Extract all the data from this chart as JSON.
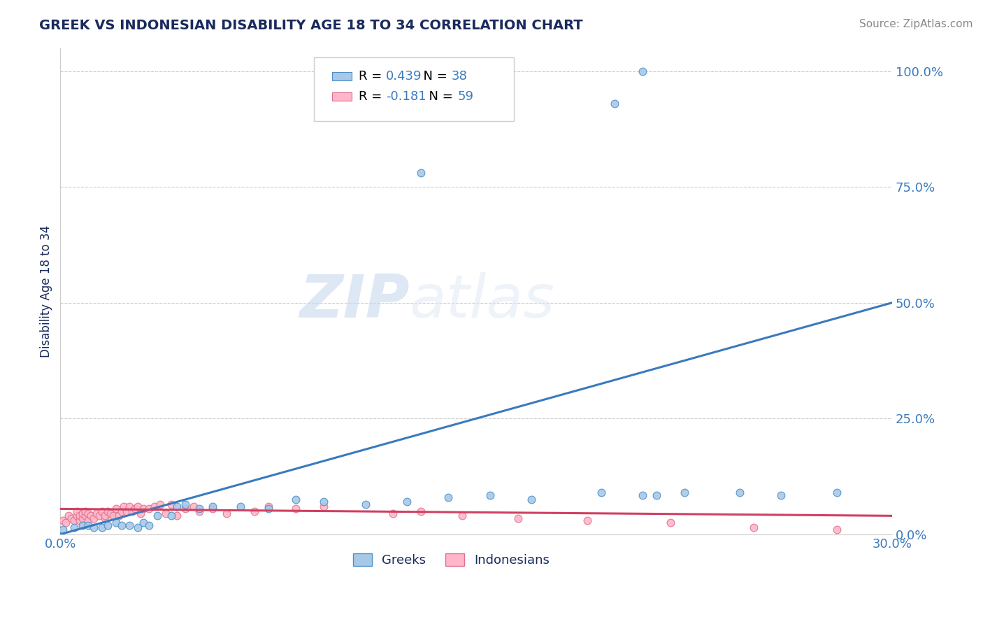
{
  "title": "GREEK VS INDONESIAN DISABILITY AGE 18 TO 34 CORRELATION CHART",
  "source": "Source: ZipAtlas.com",
  "ylabel": "Disability Age 18 to 34",
  "xlim": [
    0.0,
    0.3
  ],
  "ylim": [
    0.0,
    1.05
  ],
  "yticks": [
    0.0,
    0.25,
    0.5,
    0.75,
    1.0
  ],
  "ytick_labels": [
    "0.0%",
    "25.0%",
    "50.0%",
    "75.0%",
    "100.0%"
  ],
  "xticks": [
    0.0,
    0.3
  ],
  "xtick_labels": [
    "0.0%",
    "30.0%"
  ],
  "greek_R": 0.439,
  "greek_N": 38,
  "indonesian_R": -0.181,
  "indonesian_N": 59,
  "greek_color": "#a8c8e8",
  "greek_edge_color": "#4a90c8",
  "indonesian_color": "#ffb6c8",
  "indonesian_edge_color": "#e07090",
  "greek_line_color": "#3a7abf",
  "indonesian_line_color": "#d04060",
  "axis_label_color": "#3a7abf",
  "title_color": "#1a2a5e",
  "watermark_color": "#d5e5f5",
  "background_color": "#ffffff",
  "grid_color": "#cccccc",
  "greek_line_x": [
    0.0,
    0.3
  ],
  "greek_line_y": [
    0.0,
    0.5
  ],
  "indonesian_line_x": [
    0.0,
    0.3
  ],
  "indonesian_line_y": [
    0.055,
    0.04
  ],
  "greek_scatter_x": [
    0.001,
    0.005,
    0.008,
    0.01,
    0.012,
    0.015,
    0.017,
    0.02,
    0.022,
    0.025,
    0.028,
    0.03,
    0.032,
    0.035,
    0.04,
    0.042,
    0.045,
    0.05,
    0.055,
    0.065,
    0.075,
    0.085,
    0.095,
    0.11,
    0.125,
    0.14,
    0.155,
    0.17,
    0.195,
    0.21,
    0.215,
    0.225,
    0.245,
    0.26,
    0.28,
    0.13,
    0.2,
    0.21
  ],
  "greek_scatter_y": [
    0.01,
    0.015,
    0.02,
    0.02,
    0.015,
    0.015,
    0.02,
    0.025,
    0.02,
    0.02,
    0.015,
    0.025,
    0.02,
    0.04,
    0.04,
    0.06,
    0.065,
    0.055,
    0.06,
    0.06,
    0.055,
    0.075,
    0.07,
    0.065,
    0.07,
    0.08,
    0.085,
    0.075,
    0.09,
    0.085,
    0.085,
    0.09,
    0.09,
    0.085,
    0.09,
    0.78,
    0.93,
    1.0
  ],
  "indonesian_scatter_x": [
    0.001,
    0.002,
    0.003,
    0.004,
    0.005,
    0.006,
    0.006,
    0.007,
    0.007,
    0.008,
    0.008,
    0.009,
    0.009,
    0.01,
    0.01,
    0.011,
    0.012,
    0.013,
    0.014,
    0.015,
    0.016,
    0.016,
    0.017,
    0.018,
    0.019,
    0.02,
    0.021,
    0.022,
    0.023,
    0.024,
    0.025,
    0.026,
    0.027,
    0.028,
    0.029,
    0.03,
    0.032,
    0.034,
    0.036,
    0.038,
    0.04,
    0.042,
    0.045,
    0.048,
    0.05,
    0.055,
    0.06,
    0.07,
    0.075,
    0.085,
    0.095,
    0.12,
    0.13,
    0.145,
    0.165,
    0.19,
    0.22,
    0.25,
    0.28
  ],
  "indonesian_scatter_y": [
    0.03,
    0.025,
    0.04,
    0.035,
    0.03,
    0.04,
    0.05,
    0.03,
    0.04,
    0.035,
    0.045,
    0.04,
    0.05,
    0.03,
    0.045,
    0.04,
    0.035,
    0.045,
    0.04,
    0.05,
    0.035,
    0.04,
    0.05,
    0.045,
    0.04,
    0.055,
    0.04,
    0.05,
    0.06,
    0.05,
    0.06,
    0.05,
    0.055,
    0.06,
    0.045,
    0.055,
    0.055,
    0.06,
    0.065,
    0.045,
    0.065,
    0.04,
    0.055,
    0.06,
    0.05,
    0.055,
    0.045,
    0.05,
    0.06,
    0.055,
    0.06,
    0.045,
    0.05,
    0.04,
    0.035,
    0.03,
    0.025,
    0.015,
    0.01
  ]
}
